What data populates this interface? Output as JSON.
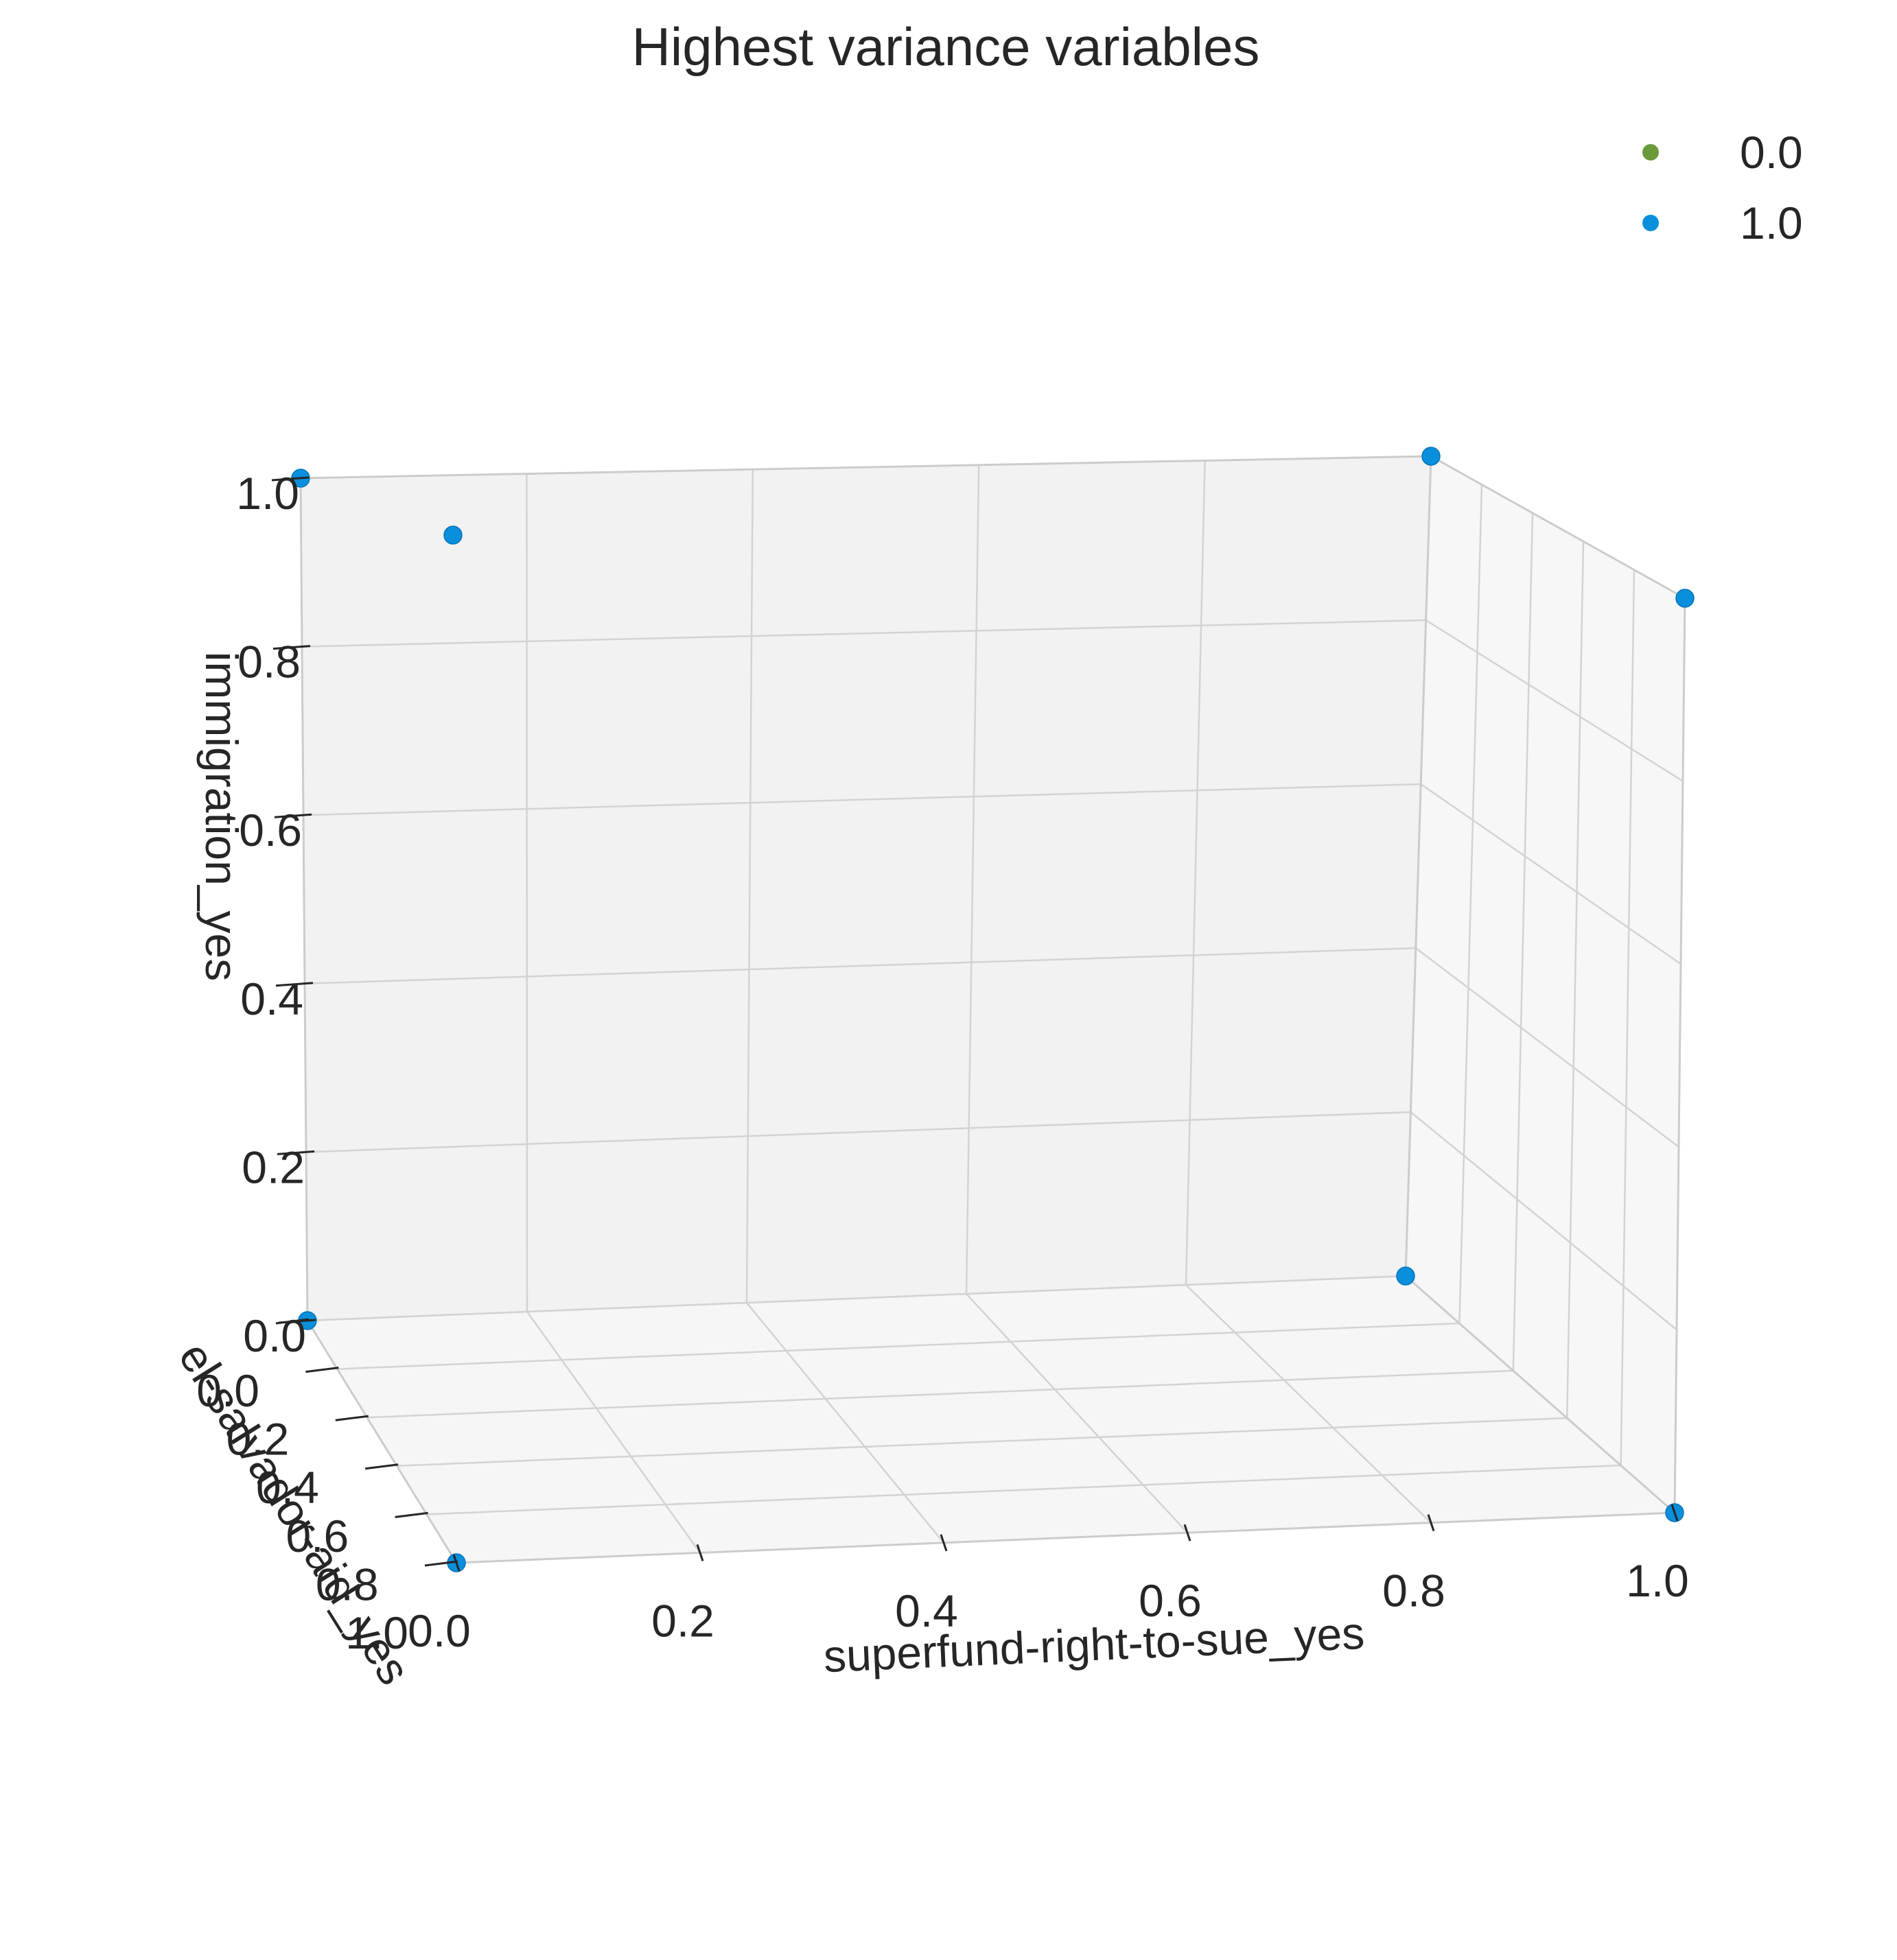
{
  "chart_data": {
    "type": "scatter",
    "projection": "3d",
    "title": "Highest variance variables",
    "x_label": "superfund-right-to-sue_yes",
    "y_label": "el-salvador-aid_yes",
    "z_label": "immigration_yes",
    "x_ticks": [
      "0.0",
      "0.2",
      "0.4",
      "0.6",
      "0.8",
      "1.0"
    ],
    "y_ticks": [
      "0.0",
      "0.2",
      "0.4",
      "0.6",
      "0.8",
      "1.0"
    ],
    "z_ticks": [
      "0.0",
      "0.2",
      "0.4",
      "0.6",
      "0.8",
      "1.0"
    ],
    "xlim": [
      0,
      1
    ],
    "ylim": [
      0,
      1
    ],
    "zlim": [
      0,
      1
    ],
    "grid": true,
    "legend_position": "top-right",
    "series": [
      {
        "name": "0.0",
        "color": "#6a9a3a",
        "points": []
      },
      {
        "name": "1.0",
        "color": "#0a8fdc",
        "points": [
          {
            "x": 0,
            "y": 0,
            "z": 0
          },
          {
            "x": 1,
            "y": 0,
            "z": 0
          },
          {
            "x": 0,
            "y": 1,
            "z": 0
          },
          {
            "x": 1,
            "y": 1,
            "z": 0
          },
          {
            "x": 0,
            "y": 0,
            "z": 1
          },
          {
            "x": 1,
            "y": 0,
            "z": 1
          },
          {
            "x": 0,
            "y": 1,
            "z": 1
          },
          {
            "x": 1,
            "y": 1,
            "z": 1
          }
        ]
      }
    ]
  }
}
